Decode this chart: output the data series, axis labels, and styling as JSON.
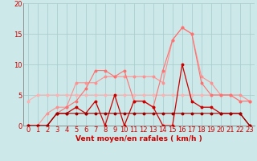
{
  "x": [
    0,
    1,
    2,
    3,
    4,
    5,
    6,
    7,
    8,
    9,
    10,
    11,
    12,
    13,
    14,
    15,
    16,
    17,
    18,
    19,
    20,
    21,
    22,
    23
  ],
  "line_rafales_max": [
    4,
    5,
    5,
    5,
    5,
    5,
    5,
    5,
    5,
    5,
    5,
    5,
    5,
    5,
    5,
    5,
    5,
    5,
    5,
    5,
    5,
    5,
    4,
    4
  ],
  "line_rafales": [
    0,
    0,
    2,
    3,
    3,
    7,
    7,
    7,
    8,
    8,
    8,
    8,
    8,
    8,
    7,
    14,
    16,
    15,
    8,
    7,
    5,
    5,
    5,
    4
  ],
  "line_vent_max": [
    0,
    0,
    0,
    2,
    3,
    4,
    6,
    9,
    9,
    8,
    9,
    4,
    4,
    3,
    9,
    14,
    16,
    15,
    7,
    5,
    5,
    5,
    4,
    4
  ],
  "line_vent": [
    0,
    0,
    0,
    2,
    2,
    3,
    2,
    4,
    0,
    5,
    0,
    4,
    4,
    3,
    0,
    0,
    10,
    4,
    3,
    3,
    2,
    2,
    2,
    0
  ],
  "line_base": [
    0,
    0,
    0,
    2,
    2,
    2,
    2,
    2,
    2,
    2,
    2,
    2,
    2,
    2,
    2,
    2,
    2,
    2,
    2,
    2,
    2,
    2,
    2,
    0
  ],
  "color_rafales_max": "#ffb0b0",
  "color_rafales": "#ff9090",
  "color_vent_max": "#ff7070",
  "color_vent": "#cc0000",
  "color_base": "#990000",
  "bg_color": "#cce8e8",
  "grid_color": "#aacece",
  "text_color": "#cc0000",
  "xlabel": "Vent moyen/en rafales ( km/h )",
  "xlabel_fontsize": 6.5,
  "tick_fontsize": 6,
  "ylim": [
    0,
    20
  ],
  "xlim": [
    -0.5,
    23.5
  ],
  "yticks": [
    0,
    5,
    10,
    15,
    20
  ],
  "arrows": [
    "?",
    "↑",
    "↗",
    "↘",
    "←",
    "↓",
    "↖",
    "↑",
    "←",
    "↑",
    "↗",
    "↑",
    "↗",
    "←",
    "↑",
    "↑"
  ]
}
